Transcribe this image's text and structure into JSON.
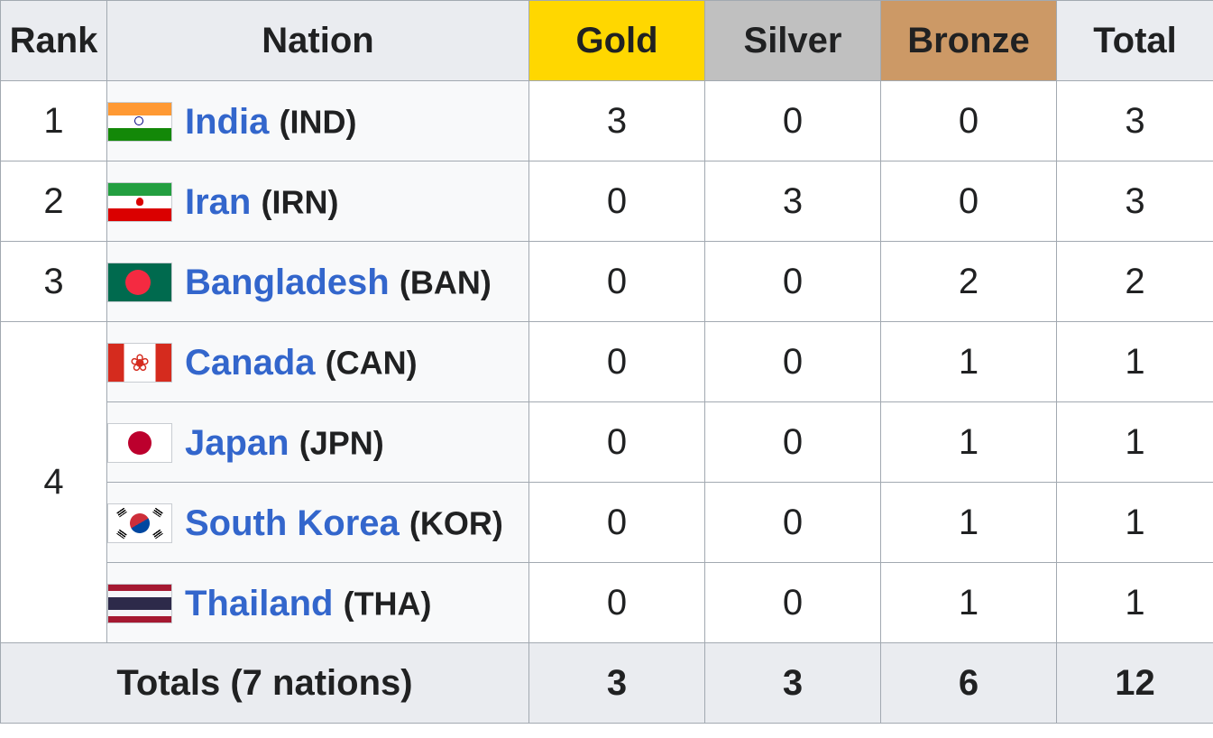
{
  "headers": {
    "rank": "Rank",
    "nation": "Nation",
    "gold": "Gold",
    "silver": "Silver",
    "bronze": "Bronze",
    "total": "Total"
  },
  "colors": {
    "gold": "#ffd700",
    "silver": "#c0c0c0",
    "bronze": "#cc9966",
    "link": "#3366cc",
    "header_bg": "#eaecf0",
    "nation_bg": "#f8f9fa"
  },
  "rows": [
    {
      "rank": "1",
      "name": "India",
      "code": "(IND)",
      "flag": "india-flag-icon",
      "gold": "3",
      "silver": "0",
      "bronze": "0",
      "total": "3"
    },
    {
      "rank": "2",
      "name": "Iran",
      "code": "(IRN)",
      "flag": "iran-flag-icon",
      "gold": "0",
      "silver": "3",
      "bronze": "0",
      "total": "3"
    },
    {
      "rank": "3",
      "name": "Bangladesh",
      "code": "(BAN)",
      "flag": "bangladesh-flag-icon",
      "gold": "0",
      "silver": "0",
      "bronze": "2",
      "total": "2"
    },
    {
      "rank": "4",
      "name": "Canada",
      "code": "(CAN)",
      "flag": "canada-flag-icon",
      "gold": "0",
      "silver": "0",
      "bronze": "1",
      "total": "1"
    },
    {
      "rank": "",
      "name": "Japan",
      "code": "(JPN)",
      "flag": "japan-flag-icon",
      "gold": "0",
      "silver": "0",
      "bronze": "1",
      "total": "1"
    },
    {
      "rank": "",
      "name": "South Korea",
      "code": "(KOR)",
      "flag": "south-korea-flag-icon",
      "gold": "0",
      "silver": "0",
      "bronze": "1",
      "total": "1"
    },
    {
      "rank": "",
      "name": "Thailand",
      "code": "(THA)",
      "flag": "thailand-flag-icon",
      "gold": "0",
      "silver": "0",
      "bronze": "1",
      "total": "1"
    }
  ],
  "totals": {
    "label": "Totals (7 nations)",
    "gold": "3",
    "silver": "3",
    "bronze": "6",
    "total": "12"
  }
}
